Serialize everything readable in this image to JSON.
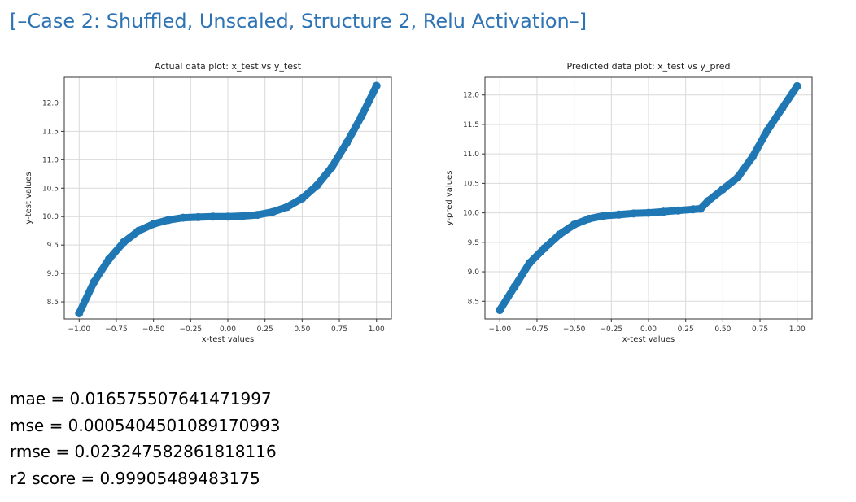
{
  "heading": "[–Case 2: Shuffled, Unscaled, Structure 2, Relu Activation–]",
  "chart_data": [
    {
      "type": "scatter",
      "title": "Actual data plot: x_test vs y_test",
      "xlabel": "x-test values",
      "ylabel": "y-test values",
      "xlim": [
        -1.1,
        1.1
      ],
      "ylim": [
        8.2,
        12.45
      ],
      "xticks": [
        -1.0,
        -0.75,
        -0.5,
        -0.25,
        0.0,
        0.25,
        0.5,
        0.75,
        1.0
      ],
      "xtick_labels": [
        "−1.00",
        "−0.75",
        "−0.50",
        "−0.25",
        "0.00",
        "0.25",
        "0.50",
        "0.75",
        "1.00"
      ],
      "yticks": [
        8.5,
        9.0,
        9.5,
        10.0,
        10.5,
        11.0,
        11.5,
        12.0
      ],
      "ytick_labels": [
        "8.5",
        "9.0",
        "9.5",
        "10.0",
        "10.5",
        "11.0",
        "11.5",
        "12.0"
      ],
      "grid": true,
      "color": "#1f77b4",
      "x": [
        -1.0,
        -0.9,
        -0.8,
        -0.7,
        -0.6,
        -0.5,
        -0.4,
        -0.3,
        -0.2,
        -0.1,
        0.0,
        0.1,
        0.2,
        0.3,
        0.4,
        0.5,
        0.6,
        0.7,
        0.8,
        0.9,
        1.0
      ],
      "y": [
        8.3,
        8.85,
        9.25,
        9.55,
        9.75,
        9.87,
        9.94,
        9.98,
        9.99,
        10.0,
        10.0,
        10.01,
        10.03,
        10.08,
        10.17,
        10.32,
        10.55,
        10.87,
        11.3,
        11.77,
        12.3
      ]
    },
    {
      "type": "scatter",
      "title": "Predicted data plot: x_test vs y_pred",
      "xlabel": "x-test values",
      "ylabel": "y-pred values",
      "xlim": [
        -1.1,
        1.1
      ],
      "ylim": [
        8.2,
        12.3
      ],
      "xticks": [
        -1.0,
        -0.75,
        -0.5,
        -0.25,
        0.0,
        0.25,
        0.5,
        0.75,
        1.0
      ],
      "xtick_labels": [
        "−1.00",
        "−0.75",
        "−0.50",
        "−0.25",
        "0.00",
        "0.25",
        "0.50",
        "0.75",
        "1.00"
      ],
      "yticks": [
        8.5,
        9.0,
        9.5,
        10.0,
        10.5,
        11.0,
        11.5,
        12.0
      ],
      "ytick_labels": [
        "8.5",
        "9.0",
        "9.5",
        "10.0",
        "10.5",
        "11.0",
        "11.5",
        "12.0"
      ],
      "grid": true,
      "color": "#1f77b4",
      "x": [
        -1.0,
        -0.9,
        -0.8,
        -0.7,
        -0.6,
        -0.5,
        -0.4,
        -0.3,
        -0.2,
        -0.1,
        0.0,
        0.1,
        0.2,
        0.3,
        0.35,
        0.4,
        0.5,
        0.6,
        0.7,
        0.8,
        0.9,
        1.0
      ],
      "y": [
        8.35,
        8.75,
        9.15,
        9.4,
        9.63,
        9.8,
        9.9,
        9.95,
        9.97,
        9.99,
        10.0,
        10.02,
        10.04,
        10.06,
        10.07,
        10.2,
        10.4,
        10.6,
        10.95,
        11.4,
        11.78,
        12.15
      ]
    }
  ],
  "metrics": [
    "mae = 0.016575507641471997",
    "mse = 0.0005404501089170993",
    "rmse = 0.023247582861818116",
    "r2 score = 0.99905489483175"
  ]
}
